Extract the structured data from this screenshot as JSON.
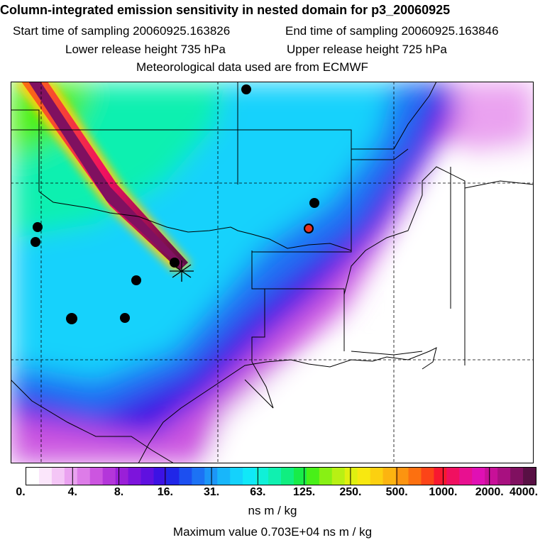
{
  "header": {
    "title": "Column-integrated emission sensitivity in nested domain for p3_20060925",
    "start_label": "Start time of sampling 20060925.163826",
    "end_label": "End time of sampling 20060925.163846",
    "lower_label": "Lower release height  735 hPa",
    "upper_label": "Upper release height  725 hPa",
    "met_label": "Meteorological data used are from ECMWF"
  },
  "colorbar": {
    "tick_labels": [
      "0.",
      "4.",
      "8.",
      "16.",
      "31.",
      "63.",
      "125.",
      "250.",
      "500.",
      "1000.",
      "2000.",
      "4000."
    ],
    "colors": [
      "#ffffff",
      "#fbe6fb",
      "#f4c6f6",
      "#eaa2f0",
      "#dd7ce8",
      "#cc55e0",
      "#b436da",
      "#9a1fd8",
      "#7d14dc",
      "#5f10e0",
      "#3c12e4",
      "#2026e8",
      "#1c4ff0",
      "#1c72f4",
      "#1c96f8",
      "#18b6fa",
      "#14d2fc",
      "#10e8f8",
      "#10f0d8",
      "#10f0b0",
      "#10ee80",
      "#18ec48",
      "#48f018",
      "#88f014",
      "#b8f014",
      "#e0f010",
      "#f8e810",
      "#fcd010",
      "#fcb410",
      "#fc9410",
      "#fc7010",
      "#fc4418",
      "#f81830",
      "#f01060",
      "#e81090",
      "#e010b4",
      "#c81098",
      "#a81080",
      "#801060",
      "#581044"
    ],
    "units": "ns m / kg",
    "max_value": "Maximum value  0.703E+04 ns m / kg"
  },
  "map": {
    "markers": [
      {
        "name": "station-marker",
        "fill": "#000000"
      },
      {
        "name": "release-marker",
        "fill": "#e83020"
      }
    ]
  }
}
